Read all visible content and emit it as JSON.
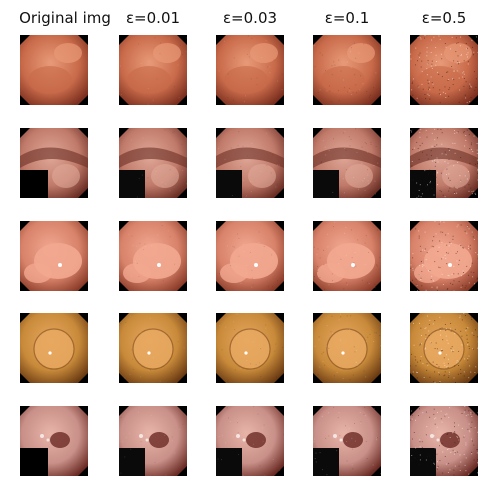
{
  "figure": {
    "columns": [
      {
        "label": "Original img",
        "noise": 0
      },
      {
        "label": "ε=0.01",
        "noise": 0.01
      },
      {
        "label": "ε=0.03",
        "noise": 0.03
      },
      {
        "label": "ε=0.1",
        "noise": 0.1
      },
      {
        "label": "ε=0.5",
        "noise": 0.5
      }
    ],
    "rows": [
      {
        "scene": "polyp-top",
        "base": "#c86a4a",
        "dark": "#7a2e1e",
        "light": "#e89a78",
        "black_corner": false
      },
      {
        "scene": "fold-corner",
        "base": "#c07a6a",
        "dark": "#6a2e24",
        "light": "#e0a898",
        "black_corner": true
      },
      {
        "scene": "pink-polyp",
        "base": "#d8826a",
        "dark": "#8a3b28",
        "light": "#f2a890",
        "black_corner": false
      },
      {
        "scene": "orange-polyp",
        "base": "#c88a3a",
        "dark": "#6a3a12",
        "light": "#e8a860",
        "black_corner": false
      },
      {
        "scene": "lesion-corner",
        "base": "#c89088",
        "dark": "#6a2a24",
        "light": "#e8b4a8",
        "black_corner": true
      }
    ]
  }
}
